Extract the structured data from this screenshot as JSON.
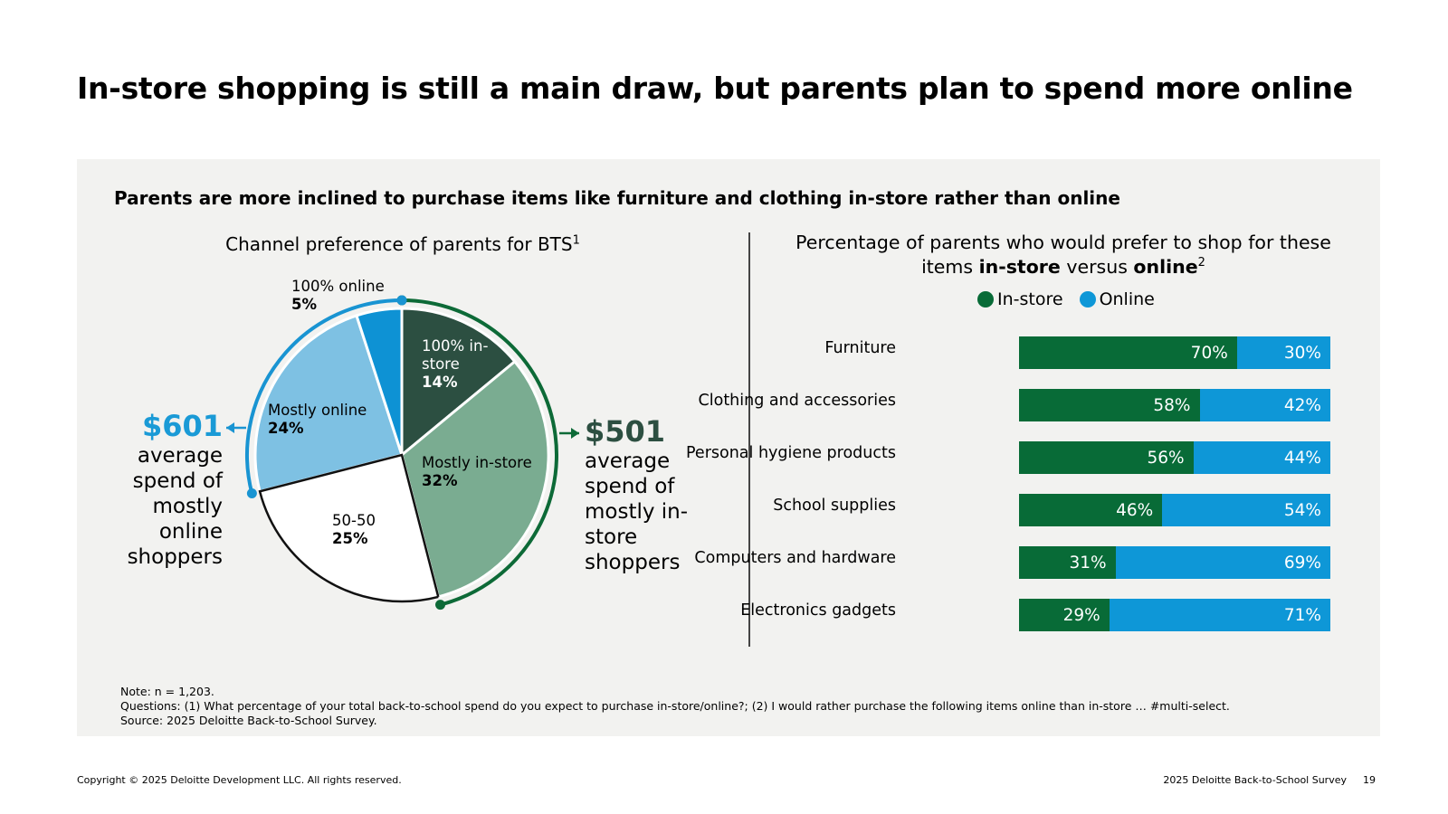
{
  "title": "In-store shopping is still a main draw, but parents plan to spend more online",
  "subtitle": "Parents are more inclined to purchase items like furniture and clothing in-store rather than online",
  "pie": {
    "title": "Channel preference of parents for BTS",
    "title_sup": "1"
  },
  "bar": {
    "title_part1": "Percentage of parents who would prefer to shop for these items ",
    "title_bold1": "in-store",
    "title_mid": " versus ",
    "title_bold2": "online",
    "title_sup": "2"
  },
  "spend_online": {
    "amount": "$601",
    "description": "average spend of mostly online shoppers"
  },
  "spend_instore": {
    "amount": "$501",
    "description": "average spend of mostly in-store shoppers"
  },
  "colors": {
    "instore_dark": "#2c4f41",
    "instore_mid": "#7aac91",
    "fifty": "#ffffff",
    "online_light": "#7ec1e3",
    "online_full": "#0e92d4",
    "bar_instore": "#086b37",
    "bar_online": "#0e97d7",
    "arc_green": "#0d6a37",
    "arc_blue": "#1994d2",
    "spend_blue": "#1a9ad6",
    "spend_green": "#2c4f41"
  },
  "chart_data": [
    {
      "type": "pie",
      "title": "Channel preference of parents for BTS",
      "slices": [
        {
          "label": "100% in-store",
          "value": 14,
          "pct_label": "14%"
        },
        {
          "label": "Mostly in-store",
          "value": 32,
          "pct_label": "32%"
        },
        {
          "label": "50-50",
          "value": 25,
          "pct_label": "25%"
        },
        {
          "label": "Mostly online",
          "value": 24,
          "pct_label": "24%"
        },
        {
          "label": "100% online",
          "value": 5,
          "pct_label": "5%"
        }
      ]
    },
    {
      "type": "bar",
      "orientation": "horizontal",
      "stacked": true,
      "title": "Percentage of parents who would prefer to shop for these items in-store versus online",
      "categories": [
        "Furniture",
        "Clothing and accessories",
        "Personal hygiene products",
        "School supplies",
        "Computers and hardware",
        "Electronics gadgets"
      ],
      "series": [
        {
          "name": "In-store",
          "values": [
            70,
            58,
            56,
            46,
            31,
            29
          ]
        },
        {
          "name": "Online",
          "values": [
            30,
            42,
            44,
            54,
            69,
            71
          ]
        }
      ],
      "legend": "top"
    }
  ],
  "notes": {
    "line1": "Note: n = 1,203.",
    "line2": "Questions: (1) What percentage of your total back-to-school spend do you expect to purchase in-store/online?; (2) I would rather purchase the following items online than in-store … #multi-select.",
    "line3": "Source: 2025 Deloitte Back-to-School Survey."
  },
  "footer": {
    "copyright": "Copyright © 2025 Deloitte Development LLC. All rights reserved.",
    "survey": "2025 Deloitte Back-to-School Survey",
    "page": "19"
  }
}
